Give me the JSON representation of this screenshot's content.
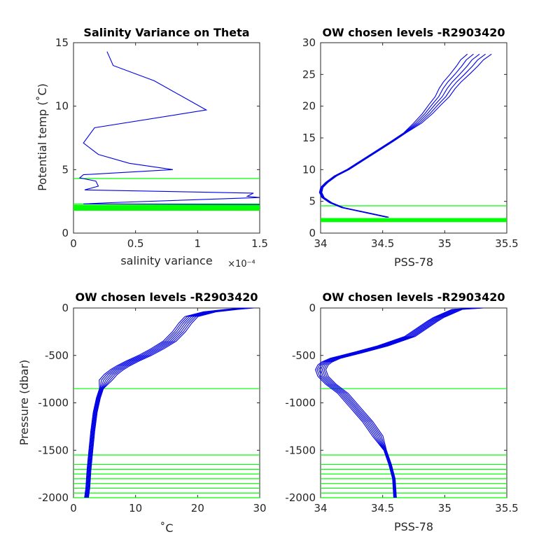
{
  "chart_data": [
    {
      "type": "line",
      "title": "Salinity Variance on Theta",
      "xlabel": "salinity variance",
      "xexponent": "×10⁻⁴",
      "ylabel": "Potential temp (˚C)",
      "xlim": [
        0,
        0.00015
      ],
      "ylim": [
        0,
        15
      ],
      "xticks": [
        0,
        5e-05,
        0.0001,
        0.00015
      ],
      "xtick_labels": [
        "0",
        "0.5",
        "1",
        "1.5"
      ],
      "yticks": [
        0,
        5,
        10,
        15
      ],
      "ytick_labels": [
        "0",
        "5",
        "10",
        "15"
      ],
      "series": [
        {
          "color": "#0000e6",
          "x": [
            2.7e-05,
            3.2e-05,
            6.5e-05,
            0.000107,
            1.7e-05,
            8e-06,
            2e-05,
            4.5e-05,
            8e-05,
            8e-06,
            5e-06,
            1.8e-05,
            2e-05,
            9e-06,
            0.000145,
            0.00014,
            0.00015,
            3e-05,
            8e-06,
            0.00015
          ],
          "y": [
            14.3,
            13.2,
            12.0,
            9.7,
            8.3,
            7.1,
            6.2,
            5.5,
            5.0,
            4.6,
            4.35,
            4.1,
            3.7,
            3.4,
            3.15,
            2.9,
            2.8,
            2.4,
            2.3,
            2.25
          ]
        }
      ],
      "reference_lines": {
        "color": "#00ff00",
        "theta": [
          4.3,
          2.3,
          2.2,
          2.15,
          2.1,
          2.05,
          2.0,
          1.95,
          1.9,
          1.85,
          1.8
        ]
      }
    },
    {
      "type": "line",
      "title": "OW chosen levels -R2903420",
      "xlabel": "PSS-78",
      "ylabel": "",
      "xlim": [
        34,
        35.5
      ],
      "ylim": [
        0,
        30
      ],
      "xticks": [
        34,
        34.5,
        35,
        35.5
      ],
      "xtick_labels": [
        "34",
        "34.5",
        "35",
        "35.5"
      ],
      "yticks": [
        0,
        5,
        10,
        15,
        20,
        25,
        30
      ],
      "ytick_labels": [
        "0",
        "5",
        "10",
        "15",
        "20",
        "25",
        "30"
      ],
      "profile": {
        "color": "#0000e6",
        "s": [
          34.54,
          34.35,
          34.18,
          34.08,
          34.02,
          34.0,
          34.01,
          34.05,
          34.12,
          34.22,
          34.34,
          34.46,
          34.58,
          34.68,
          34.78,
          34.86,
          34.92,
          34.98,
          35.02,
          35.06,
          35.12,
          35.18,
          35.22,
          35.28
        ],
        "t": [
          2.5,
          3.3,
          4.0,
          4.8,
          5.6,
          6.4,
          7.2,
          8.0,
          9.0,
          10.0,
          11.5,
          13.0,
          14.5,
          15.8,
          17.3,
          18.8,
          20.2,
          21.5,
          22.8,
          23.8,
          25.0,
          26.3,
          27.3,
          28.2
        ]
      },
      "reference_lines": {
        "color": "#00ff00",
        "theta": [
          4.3,
          2.3,
          2.2,
          2.15,
          2.1,
          2.05,
          2.0,
          1.95,
          1.9,
          1.85,
          1.8
        ]
      }
    },
    {
      "type": "line",
      "title": "OW chosen levels -R2903420",
      "xlabel": "˚C",
      "ylabel": "Pressure (dbar)",
      "xlim": [
        0,
        30
      ],
      "ylim": [
        -2000,
        0
      ],
      "xticks": [
        0,
        10,
        20,
        30
      ],
      "xtick_labels": [
        "0",
        "10",
        "20",
        "30"
      ],
      "yticks": [
        -2000,
        -1500,
        -1000,
        -500,
        0
      ],
      "ytick_labels": [
        "-2000",
        "-1500",
        "-1000",
        "-500",
        "0"
      ],
      "profile": {
        "color": "#0000e6",
        "temp": [
          28.0,
          25.5,
          22.0,
          19.0,
          18.0,
          17.0,
          15.5,
          13.5,
          11.5,
          9.5,
          8.0,
          7.0,
          6.0,
          5.2,
          4.5,
          4.0,
          3.5,
          3.1,
          2.8,
          2.5,
          2.3,
          2.1
        ],
        "pres": [
          0,
          -15,
          -40,
          -90,
          -160,
          -250,
          -350,
          -430,
          -500,
          -560,
          -610,
          -650,
          -700,
          -760,
          -850,
          -950,
          -1100,
          -1300,
          -1500,
          -1700,
          -1900,
          -2000
        ]
      },
      "reference_lines": {
        "color": "#00ff00",
        "pres": [
          -850,
          -1550,
          -1650,
          -1700,
          -1750,
          -1800,
          -1850,
          -1900,
          -1950,
          -2000
        ]
      }
    },
    {
      "type": "line",
      "title": "OW chosen levels -R2903420",
      "xlabel": "PSS-78",
      "ylabel": "",
      "xlim": [
        34,
        35.5
      ],
      "ylim": [
        -2000,
        0
      ],
      "xticks": [
        34,
        34.5,
        35,
        35.5
      ],
      "xtick_labels": [
        "34",
        "34.5",
        "35",
        "35.5"
      ],
      "yticks": [
        -2000,
        -1500,
        -1000,
        -500,
        0
      ],
      "ytick_labels": [
        "-2000",
        "-1500",
        "-1000",
        "-500",
        "0"
      ],
      "profile": {
        "color": "#0000e6",
        "sal": [
          35.27,
          35.1,
          34.95,
          34.9,
          34.72,
          34.5,
          34.3,
          34.12,
          34.05,
          34.02,
          34.0,
          34.02,
          34.08,
          34.18,
          34.28,
          34.38,
          34.46,
          34.52,
          34.56,
          34.59,
          34.6
        ],
        "pres": [
          0,
          -15,
          -100,
          -140,
          -300,
          -400,
          -470,
          -530,
          -570,
          -600,
          -650,
          -720,
          -800,
          -900,
          -1050,
          -1200,
          -1350,
          -1500,
          -1650,
          -1800,
          -2000
        ]
      },
      "reference_lines": {
        "color": "#00ff00",
        "pres": [
          -850,
          -1550,
          -1650,
          -1700,
          -1750,
          -1800,
          -1850,
          -1900,
          -1950,
          -2000
        ]
      }
    }
  ]
}
